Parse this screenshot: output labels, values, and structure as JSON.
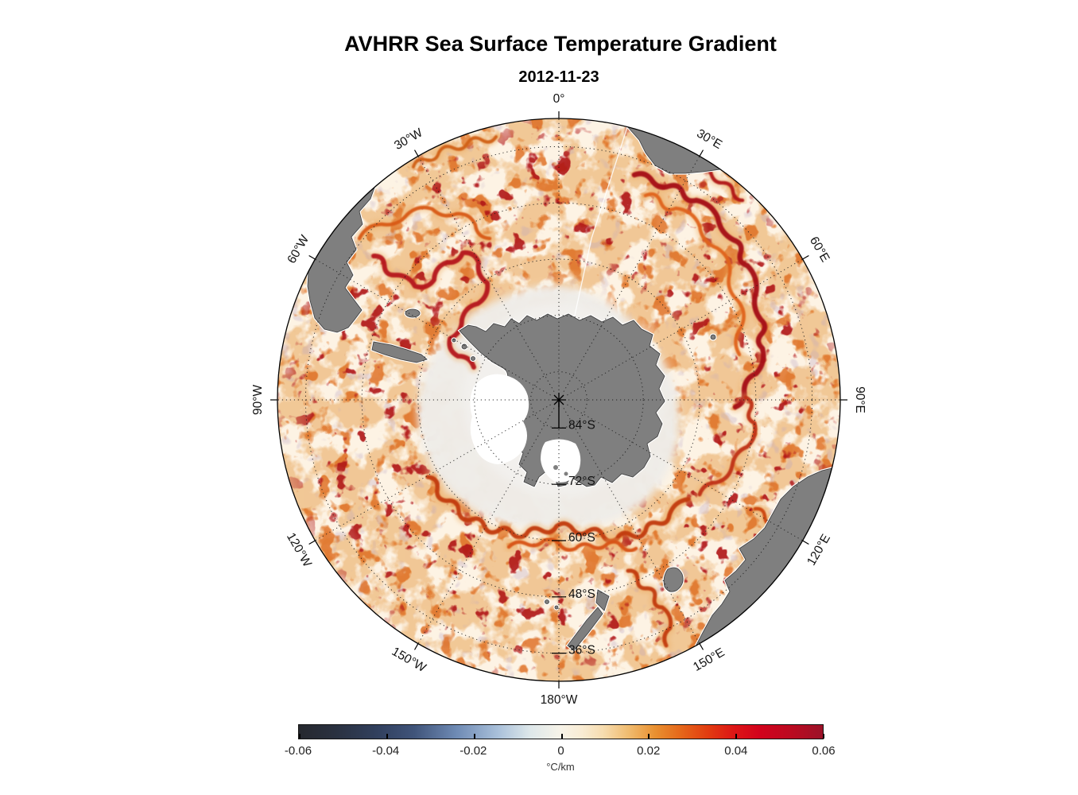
{
  "chart_data": {
    "type": "heatmap",
    "title": "AVHRR Sea Surface Temperature Gradient",
    "subtitle": "2012-11-23",
    "projection": "south-polar stereographic",
    "region": "Southern Ocean / Antarctica",
    "grid": "dotted graticule, 30-degree meridians, 12-degree parallels",
    "colorbar": {
      "label": "°C/km",
      "min": -0.06,
      "max": 0.06,
      "orientation": "horizontal",
      "tick_labels": [
        "-0.06",
        "-0.04",
        "-0.02",
        "0",
        "0.02",
        "0.04",
        "0.06"
      ],
      "gradient_stops": [
        {
          "pos": 0.0,
          "color": "#26282e"
        },
        {
          "pos": 0.07,
          "color": "#2a3140"
        },
        {
          "pos": 0.15,
          "color": "#31405e"
        },
        {
          "pos": 0.22,
          "color": "#40547a"
        },
        {
          "pos": 0.3,
          "color": "#6e8ab4"
        },
        {
          "pos": 0.38,
          "color": "#a9c0da"
        },
        {
          "pos": 0.44,
          "color": "#dde7ea"
        },
        {
          "pos": 0.5,
          "color": "#f7f3e8"
        },
        {
          "pos": 0.54,
          "color": "#f9ecd4"
        },
        {
          "pos": 0.58,
          "color": "#f7ddb0"
        },
        {
          "pos": 0.63,
          "color": "#f0bb6e"
        },
        {
          "pos": 0.68,
          "color": "#e99030"
        },
        {
          "pos": 0.73,
          "color": "#e5661a"
        },
        {
          "pos": 0.78,
          "color": "#e23c10"
        },
        {
          "pos": 0.83,
          "color": "#dd1616"
        },
        {
          "pos": 0.88,
          "color": "#d2021c"
        },
        {
          "pos": 0.94,
          "color": "#bb0a20"
        },
        {
          "pos": 1.0,
          "color": "#9b1228"
        }
      ]
    },
    "longitude_labels": [
      {
        "angle_deg": 0,
        "label": "0°"
      },
      {
        "angle_deg": 30,
        "label": "30°E"
      },
      {
        "angle_deg": 60,
        "label": "60°E"
      },
      {
        "angle_deg": 90,
        "label": "90°E"
      },
      {
        "angle_deg": 120,
        "label": "120°E"
      },
      {
        "angle_deg": 150,
        "label": "150°E"
      },
      {
        "angle_deg": 180,
        "label": "180°W"
      },
      {
        "angle_deg": 210,
        "label": "150°W"
      },
      {
        "angle_deg": 240,
        "label": "120°W"
      },
      {
        "angle_deg": 270,
        "label": "90°W"
      },
      {
        "angle_deg": 300,
        "label": "60°W"
      },
      {
        "angle_deg": 330,
        "label": "30°W"
      }
    ],
    "latitude_labels": [
      {
        "label": "84°S",
        "radius_frac": 0.1
      },
      {
        "label": "72°S",
        "radius_frac": 0.3
      },
      {
        "label": "60°S",
        "radius_frac": 0.5
      },
      {
        "label": "48°S",
        "radius_frac": 0.7
      },
      {
        "label": "36°S",
        "radius_frac": 0.9
      }
    ],
    "land_color": "#7f7f7f",
    "ocean_base_color": "#fdf3e4",
    "ice_zone_color": "#efede9",
    "strong_gradient_color": "#a50f15"
  }
}
